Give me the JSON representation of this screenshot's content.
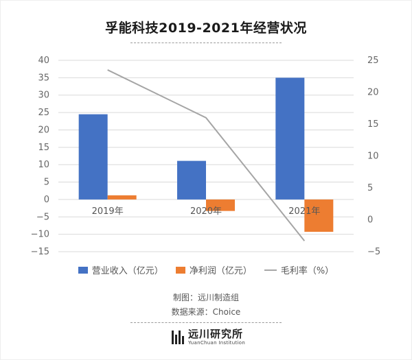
{
  "title": "孚能科技2019-2021年经营状况",
  "colors": {
    "revenue": "#4472c4",
    "profit": "#ed7d31",
    "margin": "#a5a5a5",
    "grid": "#d9d9d9"
  },
  "chart_data": {
    "type": "bar",
    "categories": [
      "2019年",
      "2020年",
      "2021年"
    ],
    "series": [
      {
        "name": "营业收入（亿元）",
        "axis": "left",
        "type": "bar",
        "values": [
          24.5,
          11.1,
          35.0
        ]
      },
      {
        "name": "净利润（亿元）",
        "axis": "left",
        "type": "bar",
        "values": [
          1.2,
          -3.3,
          -9.3
        ]
      },
      {
        "name": "毛利率（%）",
        "axis": "right",
        "type": "line",
        "values": [
          23.5,
          16.0,
          -3.3
        ]
      }
    ],
    "left_axis": {
      "min": -15,
      "max": 40,
      "step": 5,
      "ticks": [
        "40",
        "35",
        "30",
        "25",
        "20",
        "15",
        "10",
        "5",
        "0",
        "−5",
        "−10",
        "−15"
      ]
    },
    "right_axis": {
      "min": -5,
      "max": 25,
      "step": 5,
      "ticks": [
        "25",
        "20",
        "15",
        "10",
        "5",
        "0",
        "−5"
      ]
    },
    "legend_position": "bottom"
  },
  "credits": {
    "author": "制图：远川制造组",
    "source": "数据来源：Choice"
  },
  "logo": {
    "cn": "远川研究所",
    "en": "YuanChuan Institution"
  }
}
